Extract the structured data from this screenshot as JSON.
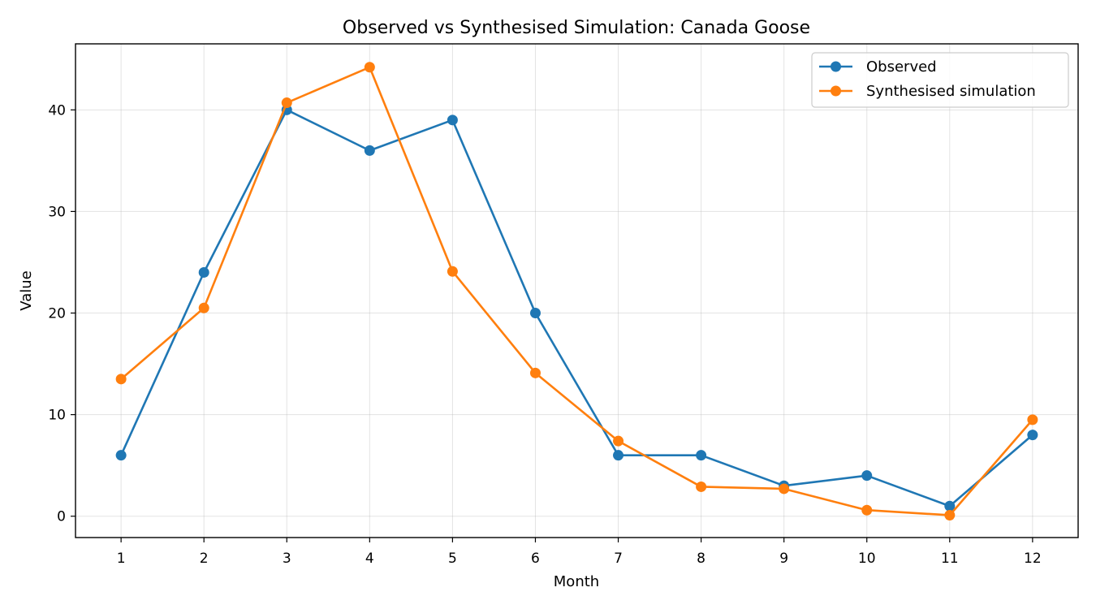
{
  "chart_data": {
    "type": "line",
    "title": "Observed vs Synthesised Simulation: Canada Goose",
    "xlabel": "Month",
    "ylabel": "Value",
    "x": [
      1,
      2,
      3,
      4,
      5,
      6,
      7,
      8,
      9,
      10,
      11,
      12
    ],
    "xlim": [
      0.45,
      12.55
    ],
    "ylim": [
      -2.1,
      46.5
    ],
    "yticks": [
      0,
      10,
      20,
      30,
      40
    ],
    "grid": true,
    "legend_position": "top-right",
    "series": [
      {
        "name": "Observed",
        "color": "#1f77b4",
        "marker": "circle",
        "values": [
          6,
          24,
          40,
          36,
          39,
          20,
          6,
          6,
          3,
          4,
          1,
          8
        ]
      },
      {
        "name": "Synthesised simulation",
        "color": "#ff7f0e",
        "marker": "circle",
        "values": [
          13.5,
          20.5,
          40.7,
          44.2,
          24.1,
          14.1,
          7.4,
          2.9,
          2.7,
          0.6,
          0.1,
          9.5
        ]
      }
    ]
  }
}
